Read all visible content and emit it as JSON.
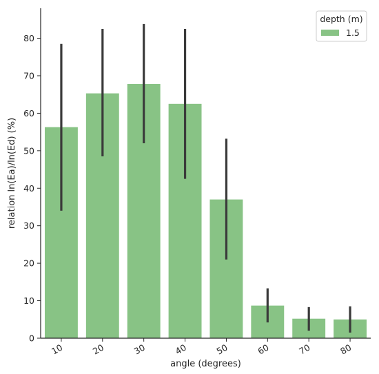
{
  "chart_data": {
    "type": "bar",
    "xlabel": "angle (degrees)",
    "ylabel": "relation ln(Ea)/ln(Ed) (%)",
    "categories": [
      "10",
      "20",
      "30",
      "40",
      "50",
      "60",
      "70",
      "80"
    ],
    "series": [
      {
        "name": "1.5",
        "color": "#88c385",
        "values": [
          56.3,
          65.3,
          67.8,
          62.5,
          37.0,
          8.7,
          5.2,
          5.0
        ],
        "error_low": [
          34.0,
          48.5,
          52.0,
          42.5,
          21.0,
          4.2,
          2.0,
          1.5
        ],
        "error_high": [
          78.5,
          82.5,
          83.8,
          82.5,
          53.2,
          13.3,
          8.3,
          8.5
        ]
      }
    ],
    "ylim": [
      0,
      88
    ],
    "yticks": [
      0,
      10,
      20,
      30,
      40,
      50,
      60,
      70,
      80
    ],
    "grid": false,
    "legend": {
      "title": "depth (m)",
      "placement": "top-right"
    },
    "error_bar_color": "#3a3a3a"
  }
}
